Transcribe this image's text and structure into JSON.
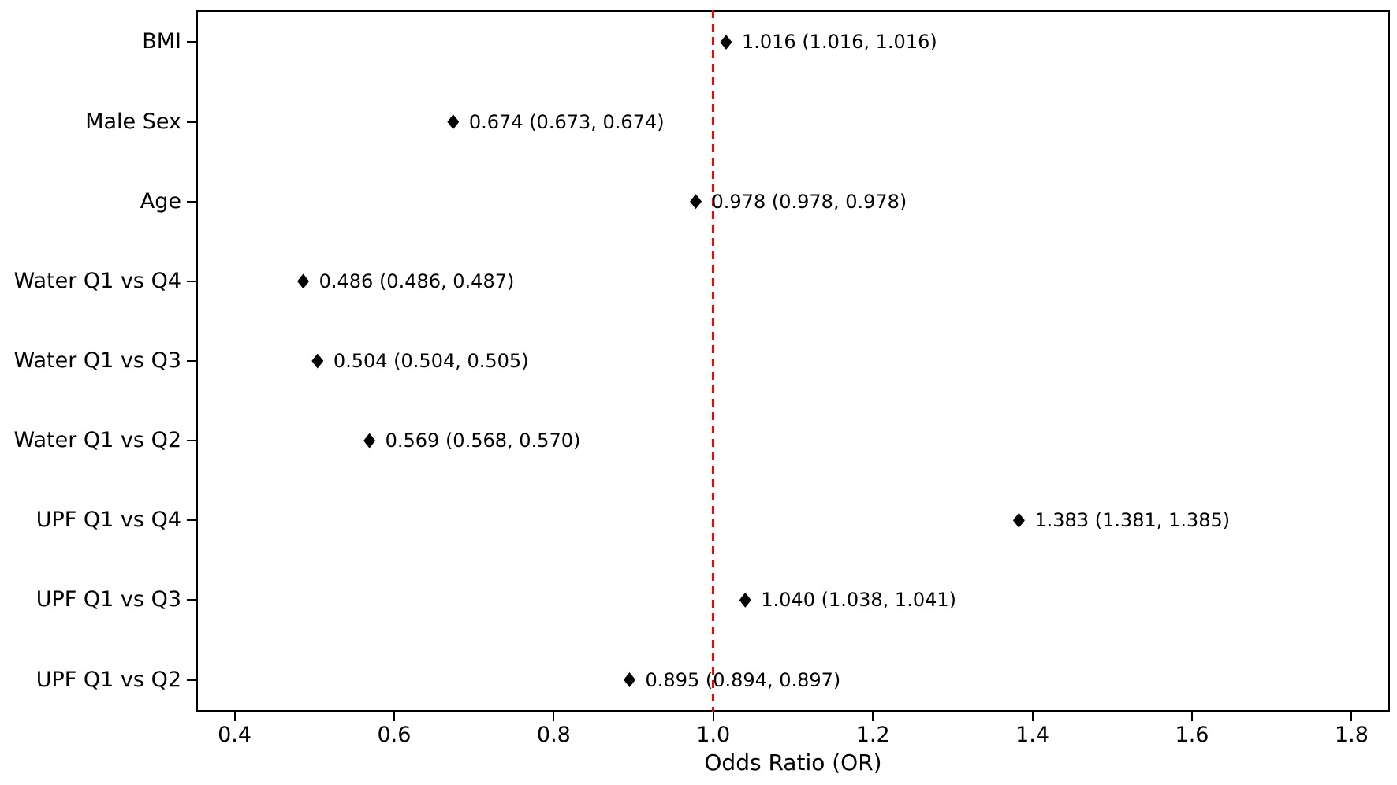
{
  "chart_data": {
    "type": "scatter",
    "subtype": "forest-plot",
    "title": "",
    "xlabel": "Odds Ratio (OR)",
    "ylabel": "",
    "x_tick_labels": [
      "0.4",
      "0.6",
      "0.8",
      "1.0",
      "1.2",
      "1.4",
      "1.6",
      "1.8"
    ],
    "x_ticks": [
      0.4,
      0.6,
      0.8,
      1.0,
      1.2,
      1.4,
      1.6,
      1.8
    ],
    "xlim": [
      0.352,
      1.848
    ],
    "categories": [
      "BMI",
      "Male Sex",
      "Age",
      "Water Q1 vs Q4",
      "Water Q1 vs Q3",
      "Water Q1 vs Q2",
      "UPF Q1 vs Q4",
      "UPF Q1 vs Q3",
      "UPF Q1 vs Q2"
    ],
    "rows": [
      {
        "category": "BMI",
        "or": 1.016,
        "ci_low": 1.016,
        "ci_high": 1.016,
        "annotation": "1.016 (1.016, 1.016)"
      },
      {
        "category": "Male Sex",
        "or": 0.674,
        "ci_low": 0.673,
        "ci_high": 0.674,
        "annotation": "0.674 (0.673, 0.674)"
      },
      {
        "category": "Age",
        "or": 0.978,
        "ci_low": 0.978,
        "ci_high": 0.978,
        "annotation": "0.978 (0.978, 0.978)"
      },
      {
        "category": "Water Q1 vs Q4",
        "or": 0.486,
        "ci_low": 0.486,
        "ci_high": 0.487,
        "annotation": "0.486 (0.486, 0.487)"
      },
      {
        "category": "Water Q1 vs Q3",
        "or": 0.504,
        "ci_low": 0.504,
        "ci_high": 0.505,
        "annotation": "0.504 (0.504, 0.505)"
      },
      {
        "category": "Water Q1 vs Q2",
        "or": 0.569,
        "ci_low": 0.568,
        "ci_high": 0.57,
        "annotation": "0.569 (0.568, 0.570)"
      },
      {
        "category": "UPF Q1 vs Q4",
        "or": 1.383,
        "ci_low": 1.381,
        "ci_high": 1.385,
        "annotation": "1.383 (1.381, 1.385)"
      },
      {
        "category": "UPF Q1 vs Q3",
        "or": 1.04,
        "ci_low": 1.038,
        "ci_high": 1.041,
        "annotation": "1.040 (1.038, 1.041)"
      },
      {
        "category": "UPF Q1 vs Q2",
        "or": 0.895,
        "ci_low": 0.894,
        "ci_high": 0.897,
        "annotation": "0.895 (0.894, 0.897)"
      }
    ],
    "reference_line": {
      "x": 1.0,
      "color": "#ff0000",
      "style": "dashed"
    },
    "marker": {
      "shape": "diamond",
      "color": "#000000"
    },
    "layout": {
      "grid": false,
      "legend": false,
      "y_margin": 0.4,
      "background": "#ffffff",
      "axis_color": "#000000"
    }
  }
}
